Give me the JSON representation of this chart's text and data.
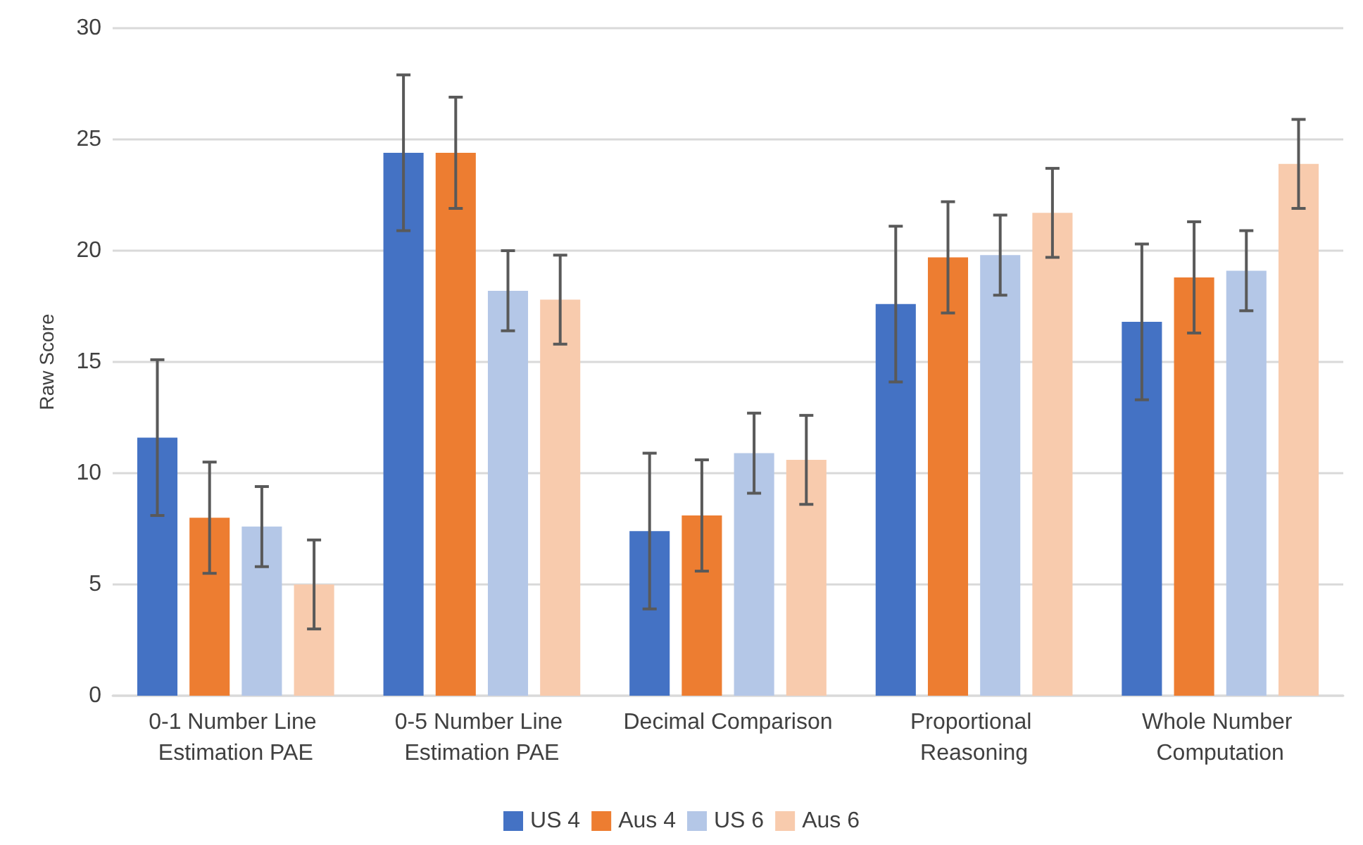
{
  "chart_data": {
    "type": "bar",
    "ylabel": "Raw Score",
    "categories": [
      "0-1 Number Line Estimation PAE",
      "0-5 Number Line Estimation PAE",
      "Decimal Comparison",
      "Proportional Reasoning",
      "Whole Number Computation"
    ],
    "series": [
      {
        "name": "US 4",
        "color": "#4472c4",
        "values": [
          11.6,
          24.4,
          7.4,
          17.6,
          16.8
        ],
        "errors": [
          3.5,
          3.5,
          3.5,
          3.5,
          3.5
        ]
      },
      {
        "name": "Aus 4",
        "color": "#ed7d31",
        "values": [
          8.0,
          24.4,
          8.1,
          19.7,
          18.8
        ],
        "errors": [
          2.5,
          2.5,
          2.5,
          2.5,
          2.5
        ]
      },
      {
        "name": "US 6",
        "color": "#b4c7e7",
        "values": [
          7.6,
          18.2,
          10.9,
          19.8,
          19.1
        ],
        "errors": [
          1.8,
          1.8,
          1.8,
          1.8,
          1.8
        ]
      },
      {
        "name": "Aus 6",
        "color": "#f8cbad",
        "values": [
          5.0,
          17.8,
          10.6,
          21.7,
          23.9
        ],
        "errors": [
          2.0,
          2.0,
          2.0,
          2.0,
          2.0
        ]
      }
    ],
    "ylim": [
      0,
      30
    ],
    "yticks": [
      0,
      5,
      10,
      15,
      20,
      25,
      30
    ],
    "grid": "y",
    "legend": "bottom"
  }
}
